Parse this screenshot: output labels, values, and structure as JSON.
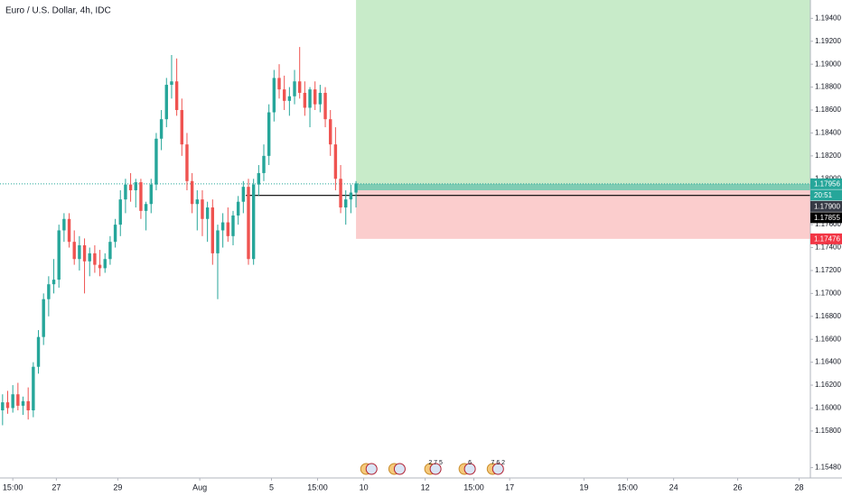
{
  "chart_data": {
    "type": "candlestick",
    "title": "Euro / U.S. Dollar, 4h, IDC",
    "up_color": "#26a69a",
    "down_color": "#ef5350",
    "open": [
      1.1598,
      1.1605,
      1.16,
      1.1612,
      1.1602,
      1.1606,
      1.1598,
      1.1636,
      1.1662,
      1.1695,
      1.1708,
      1.1712,
      1.1755,
      1.1765,
      1.1745,
      1.173,
      1.1742,
      1.1728,
      1.1735,
      1.1725,
      1.1722,
      1.173,
      1.1745,
      1.176,
      1.1782,
      1.1795,
      1.179,
      1.1797,
      1.1772,
      1.1778,
      1.1795,
      1.1835,
      1.1852,
      1.1882,
      1.1885,
      1.186,
      1.183,
      1.1798,
      1.1778,
      1.1782,
      1.1765,
      1.1775,
      1.1735,
      1.1755,
      1.1762,
      1.175,
      1.1768,
      1.178,
      1.1793,
      1.173,
      1.1795,
      1.1805,
      1.182,
      1.1858,
      1.1888,
      1.1878,
      1.1868,
      1.1872,
      1.1885,
      1.1875,
      1.1862,
      1.1878,
      1.1865,
      1.1875,
      1.1852,
      1.183,
      1.18,
      1.1775,
      1.1782,
      1.1788
    ],
    "high": [
      1.1612,
      1.1615,
      1.162,
      1.1622,
      1.161,
      1.1618,
      1.164,
      1.1668,
      1.17,
      1.1715,
      1.173,
      1.176,
      1.177,
      1.177,
      1.1755,
      1.175,
      1.1748,
      1.174,
      1.1742,
      1.1738,
      1.1735,
      1.175,
      1.1765,
      1.179,
      1.18,
      1.1805,
      1.18,
      1.18,
      1.178,
      1.18,
      1.184,
      1.186,
      1.1888,
      1.1908,
      1.1905,
      1.187,
      1.184,
      1.1805,
      1.179,
      1.179,
      1.178,
      1.1782,
      1.176,
      1.177,
      1.1775,
      1.1772,
      1.1785,
      1.1798,
      1.18,
      1.18,
      1.1812,
      1.183,
      1.1865,
      1.1895,
      1.19,
      1.189,
      1.188,
      1.1895,
      1.1915,
      1.1885,
      1.188,
      1.1885,
      1.1882,
      1.188,
      1.186,
      1.1845,
      1.1812,
      1.179,
      1.1795,
      1.1798
    ],
    "low": [
      1.1585,
      1.1595,
      1.1596,
      1.1598,
      1.1594,
      1.159,
      1.1592,
      1.163,
      1.1655,
      1.168,
      1.17,
      1.1705,
      1.1745,
      1.174,
      1.1725,
      1.172,
      1.17,
      1.1715,
      1.1718,
      1.1715,
      1.1718,
      1.1725,
      1.174,
      1.175,
      1.177,
      1.178,
      1.1775,
      1.1765,
      1.1755,
      1.177,
      1.179,
      1.1825,
      1.1845,
      1.187,
      1.1855,
      1.182,
      1.179,
      1.177,
      1.1755,
      1.175,
      1.1745,
      1.1725,
      1.1695,
      1.174,
      1.1745,
      1.1742,
      1.176,
      1.177,
      1.1725,
      1.1725,
      1.1785,
      1.1798,
      1.1812,
      1.185,
      1.187,
      1.186,
      1.1855,
      1.1865,
      1.187,
      1.1855,
      1.1845,
      1.186,
      1.1858,
      1.1845,
      1.182,
      1.179,
      1.177,
      1.176,
      1.177,
      1.1775
    ],
    "close": [
      1.1605,
      1.16,
      1.1612,
      1.1602,
      1.1606,
      1.1598,
      1.1636,
      1.1662,
      1.1695,
      1.1708,
      1.1712,
      1.1755,
      1.1765,
      1.1745,
      1.173,
      1.1742,
      1.1728,
      1.1735,
      1.1725,
      1.1722,
      1.173,
      1.1745,
      1.176,
      1.1782,
      1.1795,
      1.179,
      1.1797,
      1.1772,
      1.1778,
      1.1795,
      1.1835,
      1.1852,
      1.1882,
      1.1885,
      1.186,
      1.183,
      1.1798,
      1.1778,
      1.1782,
      1.1765,
      1.1775,
      1.1735,
      1.1755,
      1.1762,
      1.175,
      1.1768,
      1.178,
      1.1793,
      1.173,
      1.1795,
      1.1805,
      1.182,
      1.1858,
      1.1888,
      1.1878,
      1.1868,
      1.1872,
      1.1885,
      1.1875,
      1.1862,
      1.1878,
      1.1865,
      1.1875,
      1.1852,
      1.183,
      1.18,
      1.1775,
      1.1782,
      1.1788,
      1.1796
    ],
    "xlim": [
      -0.5,
      157.7
    ],
    "xticks": [
      {
        "value": 2,
        "label": "15:00"
      },
      {
        "value": 10.5,
        "label": "27"
      },
      {
        "value": 22.5,
        "label": "29"
      },
      {
        "value": 38.5,
        "label": "Aug"
      },
      {
        "value": 52.5,
        "label": "5"
      },
      {
        "value": 61.5,
        "label": "15:00"
      },
      {
        "value": 70.5,
        "label": "10"
      },
      {
        "value": 82.5,
        "label": "12"
      },
      {
        "value": 92,
        "label": "15:00"
      },
      {
        "value": 99,
        "label": "17"
      },
      {
        "value": 113.5,
        "label": "19"
      },
      {
        "value": 122,
        "label": "15:00"
      },
      {
        "value": 131,
        "label": "24"
      },
      {
        "value": 143.5,
        "label": "26"
      },
      {
        "value": 155.5,
        "label": "28"
      }
    ],
    "ylim": [
      1.1539,
      1.1956
    ],
    "yticks": [
      {
        "value": 1.194,
        "label": "1.19400"
      },
      {
        "value": 1.192,
        "label": "1.19200"
      },
      {
        "value": 1.19,
        "label": "1.19000"
      },
      {
        "value": 1.188,
        "label": "1.18800"
      },
      {
        "value": 1.186,
        "label": "1.18600"
      },
      {
        "value": 1.184,
        "label": "1.18400"
      },
      {
        "value": 1.182,
        "label": "1.18200"
      },
      {
        "value": 1.18,
        "label": "1.18000"
      },
      {
        "value": 1.176,
        "label": "1.17600"
      },
      {
        "value": 1.174,
        "label": "1.17400"
      },
      {
        "value": 1.172,
        "label": "1.17200"
      },
      {
        "value": 1.17,
        "label": "1.17000"
      },
      {
        "value": 1.168,
        "label": "1.16800"
      },
      {
        "value": 1.166,
        "label": "1.16600"
      },
      {
        "value": 1.164,
        "label": "1.16400"
      },
      {
        "value": 1.162,
        "label": "1.16200"
      },
      {
        "value": 1.16,
        "label": "1.16000"
      },
      {
        "value": 1.158,
        "label": "1.15800"
      },
      {
        "value": 1.1548,
        "label": "1.15480"
      }
    ],
    "current_price": {
      "value": 1.17956,
      "label": "1.17956",
      "color": "#26a69a"
    },
    "countdown": "20:51",
    "position": {
      "x": 69,
      "entry": {
        "value": 1.179,
        "label": "1.17900"
      },
      "stop": {
        "value": 1.17476,
        "label": "1.17476"
      },
      "profit_color": "#c8ebc9",
      "loss_color": "#fbcdcd",
      "stop_color": "#f23645"
    },
    "level": {
      "x": 47.5,
      "value": 1.17855,
      "label": "1.17855",
      "color": "#000000"
    },
    "events": [
      {
        "x": 71.5
      },
      {
        "x": 77
      },
      {
        "x": 84,
        "label": "2 7 5"
      },
      {
        "x": 90.7,
        "label": "6"
      },
      {
        "x": 96.2,
        "label": "7 6 2"
      }
    ]
  }
}
